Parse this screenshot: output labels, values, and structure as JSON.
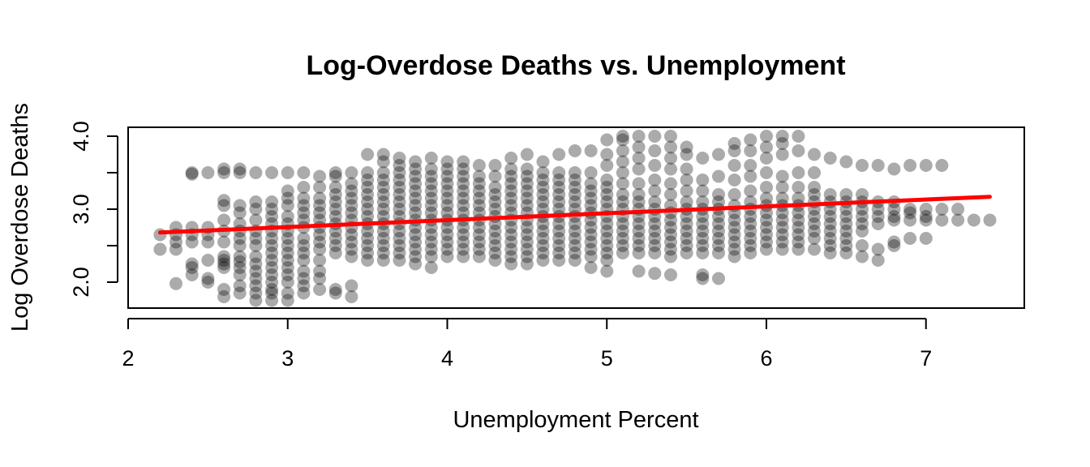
{
  "chart_data": {
    "type": "scatter",
    "title": "Log-Overdose Deaths vs. Unemployment",
    "xlabel": "Unemployment Percent",
    "ylabel": "Log Overdose Deaths",
    "xlim": [
      2.0,
      7.6
    ],
    "ylim": [
      1.75,
      4.05
    ],
    "xticks": [
      2,
      3,
      4,
      5,
      6,
      7
    ],
    "xtick_labels": [
      "2",
      "3",
      "4",
      "5",
      "6",
      "7"
    ],
    "yticks": [
      2.0,
      2.5,
      3.0,
      3.5,
      4.0
    ],
    "ytick_labels": [
      "2.0",
      "",
      "3.0",
      "",
      "4.0"
    ],
    "grid": false,
    "legend": "none",
    "point_color": "#000000",
    "point_alpha": 0.33,
    "fit_line": {
      "color": "#ff0000",
      "x": [
        2.2,
        7.4
      ],
      "y": [
        2.68,
        3.17
      ]
    },
    "columns": [
      {
        "x": 2.2,
        "y": [
          2.45,
          2.65
        ]
      },
      {
        "x": 2.3,
        "y": [
          1.98,
          2.45,
          2.55,
          2.65,
          2.75
        ]
      },
      {
        "x": 2.4,
        "y": [
          2.1,
          2.2,
          2.25,
          2.55,
          2.65,
          2.75,
          3.48,
          3.5
        ]
      },
      {
        "x": 2.5,
        "y": [
          2.0,
          2.05,
          2.3,
          2.55,
          2.65,
          2.75,
          3.5
        ]
      },
      {
        "x": 2.6,
        "y": [
          1.8,
          1.9,
          2.2,
          2.25,
          2.3,
          2.35,
          2.55,
          2.7,
          2.85,
          3.05,
          3.12,
          3.5,
          3.55
        ]
      },
      {
        "x": 2.7,
        "y": [
          1.85,
          1.95,
          2.1,
          2.2,
          2.28,
          2.35,
          2.5,
          2.6,
          2.7,
          2.8,
          2.95,
          3.05,
          3.5,
          3.55
        ]
      },
      {
        "x": 2.8,
        "y": [
          1.75,
          1.85,
          1.95,
          2.05,
          2.15,
          2.25,
          2.35,
          2.5,
          2.6,
          2.7,
          2.85,
          3.0,
          3.1,
          3.5
        ]
      },
      {
        "x": 2.9,
        "y": [
          1.75,
          1.85,
          1.9,
          2.0,
          2.1,
          2.2,
          2.3,
          2.4,
          2.5,
          2.6,
          2.7,
          2.8,
          2.9,
          3.0,
          3.1,
          3.5
        ]
      },
      {
        "x": 3.0,
        "y": [
          1.75,
          1.85,
          2.0,
          2.1,
          2.2,
          2.3,
          2.4,
          2.5,
          2.6,
          2.7,
          2.8,
          2.9,
          3.05,
          3.15,
          3.25,
          3.5
        ]
      },
      {
        "x": 3.1,
        "y": [
          1.85,
          1.95,
          2.05,
          2.15,
          2.3,
          2.4,
          2.5,
          2.6,
          2.75,
          2.85,
          2.95,
          3.05,
          3.15,
          3.3,
          3.5
        ]
      },
      {
        "x": 3.2,
        "y": [
          1.9,
          2.05,
          2.15,
          2.3,
          2.45,
          2.55,
          2.65,
          2.75,
          2.85,
          2.95,
          3.05,
          3.15,
          3.3,
          3.45
        ]
      },
      {
        "x": 3.3,
        "y": [
          1.85,
          1.9,
          2.4,
          2.5,
          2.6,
          2.7,
          2.8,
          2.9,
          3.0,
          3.1,
          3.2,
          3.3,
          3.45,
          3.5
        ]
      },
      {
        "x": 3.4,
        "y": [
          1.8,
          1.95,
          2.35,
          2.45,
          2.55,
          2.65,
          2.75,
          2.85,
          2.95,
          3.05,
          3.15,
          3.25,
          3.35,
          3.5
        ]
      },
      {
        "x": 3.5,
        "y": [
          2.3,
          2.4,
          2.5,
          2.6,
          2.7,
          2.8,
          2.9,
          3.0,
          3.1,
          3.2,
          3.3,
          3.4,
          3.5,
          3.75
        ]
      },
      {
        "x": 3.6,
        "y": [
          2.3,
          2.4,
          2.5,
          2.6,
          2.7,
          2.8,
          2.9,
          3.0,
          3.1,
          3.2,
          3.3,
          3.4,
          3.5,
          3.65,
          3.75
        ]
      },
      {
        "x": 3.7,
        "y": [
          2.3,
          2.4,
          2.5,
          2.6,
          2.7,
          2.8,
          2.9,
          3.0,
          3.1,
          3.2,
          3.3,
          3.4,
          3.5,
          3.6,
          3.7
        ]
      },
      {
        "x": 3.8,
        "y": [
          2.25,
          2.35,
          2.45,
          2.55,
          2.65,
          2.75,
          2.85,
          2.95,
          3.05,
          3.15,
          3.25,
          3.35,
          3.45,
          3.55,
          3.65
        ]
      },
      {
        "x": 3.9,
        "y": [
          2.2,
          2.35,
          2.45,
          2.55,
          2.65,
          2.75,
          2.85,
          2.95,
          3.05,
          3.15,
          3.25,
          3.35,
          3.45,
          3.55,
          3.7
        ]
      },
      {
        "x": 4.0,
        "y": [
          2.35,
          2.45,
          2.55,
          2.65,
          2.75,
          2.85,
          2.95,
          3.05,
          3.15,
          3.25,
          3.35,
          3.45,
          3.55,
          3.65
        ]
      },
      {
        "x": 4.1,
        "y": [
          2.35,
          2.45,
          2.55,
          2.65,
          2.75,
          2.85,
          2.95,
          3.05,
          3.15,
          3.25,
          3.35,
          3.45,
          3.55,
          3.65
        ]
      },
      {
        "x": 4.2,
        "y": [
          2.35,
          2.45,
          2.55,
          2.65,
          2.75,
          2.85,
          2.95,
          3.05,
          3.15,
          3.25,
          3.35,
          3.45,
          3.6
        ]
      },
      {
        "x": 4.3,
        "y": [
          2.3,
          2.4,
          2.5,
          2.6,
          2.7,
          2.8,
          2.9,
          3.0,
          3.1,
          3.2,
          3.3,
          3.45,
          3.6
        ]
      },
      {
        "x": 4.4,
        "y": [
          2.25,
          2.35,
          2.45,
          2.55,
          2.65,
          2.75,
          2.85,
          2.95,
          3.05,
          3.15,
          3.25,
          3.35,
          3.45,
          3.55,
          3.7
        ]
      },
      {
        "x": 4.5,
        "y": [
          2.25,
          2.35,
          2.45,
          2.55,
          2.65,
          2.75,
          2.85,
          2.95,
          3.05,
          3.15,
          3.25,
          3.35,
          3.45,
          3.55,
          3.75
        ]
      },
      {
        "x": 4.6,
        "y": [
          2.3,
          2.4,
          2.5,
          2.6,
          2.7,
          2.8,
          2.9,
          3.0,
          3.1,
          3.2,
          3.3,
          3.4,
          3.5,
          3.65
        ]
      },
      {
        "x": 4.7,
        "y": [
          2.3,
          2.4,
          2.5,
          2.6,
          2.7,
          2.8,
          2.9,
          3.0,
          3.1,
          3.2,
          3.3,
          3.4,
          3.5,
          3.75
        ]
      },
      {
        "x": 4.8,
        "y": [
          2.3,
          2.4,
          2.5,
          2.6,
          2.7,
          2.8,
          2.9,
          3.0,
          3.1,
          3.2,
          3.3,
          3.4,
          3.5,
          3.8
        ]
      },
      {
        "x": 4.9,
        "y": [
          2.2,
          2.35,
          2.45,
          2.55,
          2.65,
          2.75,
          2.85,
          2.95,
          3.05,
          3.15,
          3.25,
          3.35,
          3.5,
          3.8
        ]
      },
      {
        "x": 5.0,
        "y": [
          2.15,
          2.3,
          2.4,
          2.5,
          2.6,
          2.7,
          2.8,
          2.9,
          3.0,
          3.1,
          3.2,
          3.3,
          3.4,
          3.6,
          3.75,
          3.95
        ]
      },
      {
        "x": 5.1,
        "y": [
          2.4,
          2.5,
          2.6,
          2.7,
          2.8,
          2.9,
          3.0,
          3.1,
          3.2,
          3.35,
          3.5,
          3.65,
          3.8,
          3.95,
          4.0
        ]
      },
      {
        "x": 5.2,
        "y": [
          2.15,
          2.4,
          2.5,
          2.6,
          2.7,
          2.8,
          2.9,
          3.0,
          3.1,
          3.2,
          3.35,
          3.55,
          3.7,
          3.85,
          4.0
        ]
      },
      {
        "x": 5.3,
        "y": [
          2.12,
          2.4,
          2.5,
          2.6,
          2.7,
          2.8,
          2.9,
          3.0,
          3.1,
          3.25,
          3.4,
          3.6,
          3.8,
          4.0
        ]
      },
      {
        "x": 5.4,
        "y": [
          2.1,
          2.35,
          2.45,
          2.55,
          2.65,
          2.75,
          2.85,
          2.95,
          3.05,
          3.2,
          3.35,
          3.55,
          3.7,
          3.85,
          4.0
        ]
      },
      {
        "x": 5.5,
        "y": [
          2.4,
          2.5,
          2.6,
          2.7,
          2.8,
          2.9,
          3.0,
          3.1,
          3.25,
          3.4,
          3.55,
          3.75,
          3.85
        ]
      },
      {
        "x": 5.6,
        "y": [
          2.05,
          2.1,
          2.4,
          2.5,
          2.6,
          2.7,
          2.8,
          2.9,
          3.0,
          3.1,
          3.25,
          3.4,
          3.7
        ]
      },
      {
        "x": 5.7,
        "y": [
          2.05,
          2.4,
          2.5,
          2.6,
          2.7,
          2.8,
          2.9,
          3.0,
          3.1,
          3.2,
          3.45,
          3.75
        ]
      },
      {
        "x": 5.8,
        "y": [
          2.35,
          2.45,
          2.55,
          2.65,
          2.75,
          2.85,
          2.95,
          3.05,
          3.2,
          3.4,
          3.6,
          3.8,
          3.9
        ]
      },
      {
        "x": 5.9,
        "y": [
          2.4,
          2.5,
          2.6,
          2.7,
          2.8,
          2.9,
          3.0,
          3.1,
          3.25,
          3.45,
          3.6,
          3.8,
          3.95
        ]
      },
      {
        "x": 6.0,
        "y": [
          2.45,
          2.55,
          2.65,
          2.75,
          2.85,
          2.95,
          3.05,
          3.15,
          3.3,
          3.5,
          3.7,
          3.85,
          4.0
        ]
      },
      {
        "x": 6.1,
        "y": [
          2.45,
          2.55,
          2.65,
          2.75,
          2.85,
          2.95,
          3.05,
          3.15,
          3.3,
          3.45,
          3.75,
          3.9,
          4.0
        ]
      },
      {
        "x": 6.2,
        "y": [
          2.45,
          2.55,
          2.65,
          2.75,
          2.85,
          2.95,
          3.05,
          3.15,
          3.3,
          3.5,
          3.8,
          4.0
        ]
      },
      {
        "x": 6.3,
        "y": [
          2.45,
          2.6,
          2.7,
          2.8,
          2.9,
          3.0,
          3.1,
          3.2,
          3.3,
          3.5,
          3.75
        ]
      },
      {
        "x": 6.4,
        "y": [
          2.4,
          2.5,
          2.6,
          2.7,
          2.8,
          2.9,
          3.0,
          3.1,
          3.2,
          3.7
        ]
      },
      {
        "x": 6.5,
        "y": [
          2.4,
          2.5,
          2.6,
          2.7,
          2.8,
          2.9,
          3.0,
          3.1,
          3.2,
          3.65
        ]
      },
      {
        "x": 6.6,
        "y": [
          2.35,
          2.5,
          2.7,
          2.8,
          2.9,
          3.0,
          3.1,
          3.2,
          3.6
        ]
      },
      {
        "x": 6.7,
        "y": [
          2.3,
          2.45,
          2.8,
          2.9,
          3.0,
          3.1,
          3.6
        ]
      },
      {
        "x": 6.8,
        "y": [
          2.5,
          2.55,
          2.85,
          2.9,
          3.0,
          3.1,
          3.55
        ]
      },
      {
        "x": 6.9,
        "y": [
          2.6,
          2.85,
          2.95,
          3.0,
          3.6
        ]
      },
      {
        "x": 7.0,
        "y": [
          2.6,
          2.85,
          2.9,
          3.0,
          3.6
        ]
      },
      {
        "x": 7.1,
        "y": [
          2.85,
          3.0,
          3.6
        ]
      },
      {
        "x": 7.2,
        "y": [
          2.85,
          3.0
        ]
      },
      {
        "x": 7.3,
        "y": [
          2.85
        ]
      },
      {
        "x": 7.4,
        "y": [
          2.85
        ]
      }
    ]
  }
}
